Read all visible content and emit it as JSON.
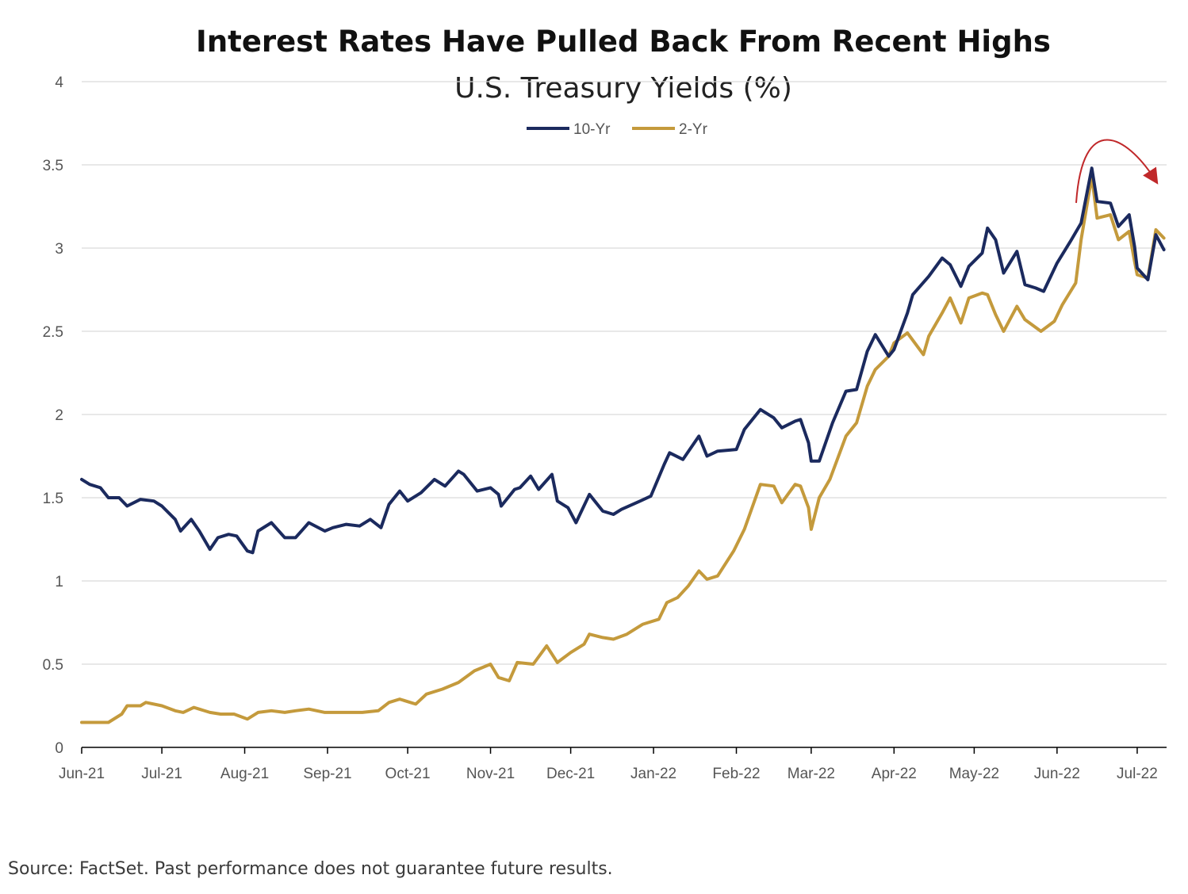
{
  "source_note": "Source: FactSet. Past performance does not guarantee future results.",
  "chart_data": {
    "type": "line",
    "title": "Interest Rates Have Pulled Back From Recent Highs",
    "subtitle": "U.S. Treasury Yields (%)",
    "xlabel": "",
    "ylabel": "",
    "ylim": [
      0,
      4
    ],
    "yticks": [
      "0",
      "0.5",
      "1",
      "1.5",
      "2",
      "2.5",
      "3",
      "3.5",
      "4"
    ],
    "xlim": [
      "2021-06-01",
      "2022-07-12"
    ],
    "xticks": [
      {
        "date": "2021-06-01",
        "label": "Jun-21"
      },
      {
        "date": "2021-07-01",
        "label": "Jul-21"
      },
      {
        "date": "2021-08-01",
        "label": "Aug-21"
      },
      {
        "date": "2021-09-01",
        "label": "Sep-21"
      },
      {
        "date": "2021-10-01",
        "label": "Oct-21"
      },
      {
        "date": "2021-11-01",
        "label": "Nov-21"
      },
      {
        "date": "2021-12-01",
        "label": "Dec-21"
      },
      {
        "date": "2022-01-01",
        "label": "Jan-22"
      },
      {
        "date": "2022-02-01",
        "label": "Feb-22"
      },
      {
        "date": "2022-03-01",
        "label": "Mar-22"
      },
      {
        "date": "2022-04-01",
        "label": "Apr-22"
      },
      {
        "date": "2022-05-01",
        "label": "May-22"
      },
      {
        "date": "2022-06-01",
        "label": "Jun-22"
      },
      {
        "date": "2022-07-01",
        "label": "Jul-22"
      }
    ],
    "grid": true,
    "legend_position": "top-center",
    "annotation": "red curved arrow over the June 2022 peak pointing down to the right",
    "series": [
      {
        "name": "10-Yr",
        "color": "#1b2a5e",
        "points": [
          [
            "2021-06-01",
            1.61
          ],
          [
            "2021-06-04",
            1.58
          ],
          [
            "2021-06-08",
            1.56
          ],
          [
            "2021-06-11",
            1.5
          ],
          [
            "2021-06-15",
            1.5
          ],
          [
            "2021-06-18",
            1.45
          ],
          [
            "2021-06-23",
            1.49
          ],
          [
            "2021-06-28",
            1.48
          ],
          [
            "2021-07-01",
            1.45
          ],
          [
            "2021-07-06",
            1.37
          ],
          [
            "2021-07-08",
            1.3
          ],
          [
            "2021-07-12",
            1.37
          ],
          [
            "2021-07-15",
            1.3
          ],
          [
            "2021-07-19",
            1.19
          ],
          [
            "2021-07-22",
            1.26
          ],
          [
            "2021-07-26",
            1.28
          ],
          [
            "2021-07-29",
            1.27
          ],
          [
            "2021-08-02",
            1.18
          ],
          [
            "2021-08-04",
            1.17
          ],
          [
            "2021-08-06",
            1.3
          ],
          [
            "2021-08-11",
            1.35
          ],
          [
            "2021-08-16",
            1.26
          ],
          [
            "2021-08-20",
            1.26
          ],
          [
            "2021-08-25",
            1.35
          ],
          [
            "2021-08-31",
            1.3
          ],
          [
            "2021-09-03",
            1.32
          ],
          [
            "2021-09-08",
            1.34
          ],
          [
            "2021-09-13",
            1.33
          ],
          [
            "2021-09-17",
            1.37
          ],
          [
            "2021-09-21",
            1.32
          ],
          [
            "2021-09-24",
            1.46
          ],
          [
            "2021-09-28",
            1.54
          ],
          [
            "2021-10-01",
            1.48
          ],
          [
            "2021-10-06",
            1.53
          ],
          [
            "2021-10-11",
            1.61
          ],
          [
            "2021-10-15",
            1.57
          ],
          [
            "2021-10-20",
            1.66
          ],
          [
            "2021-10-22",
            1.64
          ],
          [
            "2021-10-27",
            1.54
          ],
          [
            "2021-11-01",
            1.56
          ],
          [
            "2021-11-04",
            1.52
          ],
          [
            "2021-11-05",
            1.45
          ],
          [
            "2021-11-10",
            1.55
          ],
          [
            "2021-11-12",
            1.56
          ],
          [
            "2021-11-16",
            1.63
          ],
          [
            "2021-11-19",
            1.55
          ],
          [
            "2021-11-24",
            1.64
          ],
          [
            "2021-11-26",
            1.48
          ],
          [
            "2021-11-30",
            1.44
          ],
          [
            "2021-12-03",
            1.35
          ],
          [
            "2021-12-08",
            1.52
          ],
          [
            "2021-12-13",
            1.42
          ],
          [
            "2021-12-17",
            1.4
          ],
          [
            "2021-12-20",
            1.43
          ],
          [
            "2021-12-27",
            1.48
          ],
          [
            "2021-12-31",
            1.51
          ],
          [
            "2022-01-05",
            1.7
          ],
          [
            "2022-01-07",
            1.77
          ],
          [
            "2022-01-12",
            1.73
          ],
          [
            "2022-01-18",
            1.87
          ],
          [
            "2022-01-21",
            1.75
          ],
          [
            "2022-01-25",
            1.78
          ],
          [
            "2022-02-01",
            1.79
          ],
          [
            "2022-02-04",
            1.91
          ],
          [
            "2022-02-10",
            2.03
          ],
          [
            "2022-02-15",
            1.98
          ],
          [
            "2022-02-18",
            1.92
          ],
          [
            "2022-02-23",
            1.96
          ],
          [
            "2022-02-25",
            1.97
          ],
          [
            "2022-02-28",
            1.83
          ],
          [
            "2022-03-01",
            1.72
          ],
          [
            "2022-03-04",
            1.72
          ],
          [
            "2022-03-09",
            1.95
          ],
          [
            "2022-03-14",
            2.14
          ],
          [
            "2022-03-18",
            2.15
          ],
          [
            "2022-03-22",
            2.38
          ],
          [
            "2022-03-25",
            2.48
          ],
          [
            "2022-03-30",
            2.35
          ],
          [
            "2022-04-01",
            2.39
          ],
          [
            "2022-04-06",
            2.61
          ],
          [
            "2022-04-08",
            2.72
          ],
          [
            "2022-04-14",
            2.83
          ],
          [
            "2022-04-19",
            2.94
          ],
          [
            "2022-04-22",
            2.9
          ],
          [
            "2022-04-26",
            2.77
          ],
          [
            "2022-04-29",
            2.89
          ],
          [
            "2022-05-04",
            2.97
          ],
          [
            "2022-05-06",
            3.12
          ],
          [
            "2022-05-09",
            3.05
          ],
          [
            "2022-05-12",
            2.85
          ],
          [
            "2022-05-17",
            2.98
          ],
          [
            "2022-05-20",
            2.78
          ],
          [
            "2022-05-24",
            2.76
          ],
          [
            "2022-05-27",
            2.74
          ],
          [
            "2022-06-01",
            2.91
          ],
          [
            "2022-06-06",
            3.04
          ],
          [
            "2022-06-10",
            3.15
          ],
          [
            "2022-06-14",
            3.48
          ],
          [
            "2022-06-16",
            3.28
          ],
          [
            "2022-06-21",
            3.27
          ],
          [
            "2022-06-24",
            3.13
          ],
          [
            "2022-06-28",
            3.2
          ],
          [
            "2022-06-30",
            3.01
          ],
          [
            "2022-07-01",
            2.88
          ],
          [
            "2022-07-05",
            2.81
          ],
          [
            "2022-07-08",
            3.08
          ],
          [
            "2022-07-11",
            2.99
          ]
        ]
      },
      {
        "name": "2-Yr",
        "color": "#c49a3c",
        "points": [
          [
            "2021-06-01",
            0.15
          ],
          [
            "2021-06-07",
            0.15
          ],
          [
            "2021-06-11",
            0.15
          ],
          [
            "2021-06-16",
            0.2
          ],
          [
            "2021-06-18",
            0.25
          ],
          [
            "2021-06-23",
            0.25
          ],
          [
            "2021-06-25",
            0.27
          ],
          [
            "2021-07-01",
            0.25
          ],
          [
            "2021-07-06",
            0.22
          ],
          [
            "2021-07-09",
            0.21
          ],
          [
            "2021-07-13",
            0.24
          ],
          [
            "2021-07-19",
            0.21
          ],
          [
            "2021-07-23",
            0.2
          ],
          [
            "2021-07-28",
            0.2
          ],
          [
            "2021-08-02",
            0.17
          ],
          [
            "2021-08-06",
            0.21
          ],
          [
            "2021-08-11",
            0.22
          ],
          [
            "2021-08-16",
            0.21
          ],
          [
            "2021-08-20",
            0.22
          ],
          [
            "2021-08-25",
            0.23
          ],
          [
            "2021-08-31",
            0.21
          ],
          [
            "2021-09-07",
            0.21
          ],
          [
            "2021-09-14",
            0.21
          ],
          [
            "2021-09-20",
            0.22
          ],
          [
            "2021-09-24",
            0.27
          ],
          [
            "2021-09-28",
            0.29
          ],
          [
            "2021-10-04",
            0.26
          ],
          [
            "2021-10-08",
            0.32
          ],
          [
            "2021-10-14",
            0.35
          ],
          [
            "2021-10-20",
            0.39
          ],
          [
            "2021-10-26",
            0.46
          ],
          [
            "2021-11-01",
            0.5
          ],
          [
            "2021-11-04",
            0.42
          ],
          [
            "2021-11-08",
            0.4
          ],
          [
            "2021-11-11",
            0.51
          ],
          [
            "2021-11-17",
            0.5
          ],
          [
            "2021-11-22",
            0.61
          ],
          [
            "2021-11-26",
            0.51
          ],
          [
            "2021-12-01",
            0.57
          ],
          [
            "2021-12-06",
            0.62
          ],
          [
            "2021-12-08",
            0.68
          ],
          [
            "2021-12-13",
            0.66
          ],
          [
            "2021-12-17",
            0.65
          ],
          [
            "2021-12-22",
            0.68
          ],
          [
            "2021-12-28",
            0.74
          ],
          [
            "2022-01-03",
            0.77
          ],
          [
            "2022-01-06",
            0.87
          ],
          [
            "2022-01-10",
            0.9
          ],
          [
            "2022-01-14",
            0.97
          ],
          [
            "2022-01-18",
            1.06
          ],
          [
            "2022-01-21",
            1.01
          ],
          [
            "2022-01-25",
            1.03
          ],
          [
            "2022-01-31",
            1.18
          ],
          [
            "2022-02-04",
            1.31
          ],
          [
            "2022-02-10",
            1.58
          ],
          [
            "2022-02-15",
            1.57
          ],
          [
            "2022-02-18",
            1.47
          ],
          [
            "2022-02-23",
            1.58
          ],
          [
            "2022-02-25",
            1.57
          ],
          [
            "2022-02-28",
            1.44
          ],
          [
            "2022-03-01",
            1.31
          ],
          [
            "2022-03-04",
            1.5
          ],
          [
            "2022-03-08",
            1.61
          ],
          [
            "2022-03-14",
            1.87
          ],
          [
            "2022-03-18",
            1.95
          ],
          [
            "2022-03-22",
            2.17
          ],
          [
            "2022-03-25",
            2.27
          ],
          [
            "2022-03-30",
            2.35
          ],
          [
            "2022-04-01",
            2.43
          ],
          [
            "2022-04-06",
            2.49
          ],
          [
            "2022-04-12",
            2.36
          ],
          [
            "2022-04-14",
            2.47
          ],
          [
            "2022-04-19",
            2.61
          ],
          [
            "2022-04-22",
            2.7
          ],
          [
            "2022-04-26",
            2.55
          ],
          [
            "2022-04-29",
            2.7
          ],
          [
            "2022-05-04",
            2.73
          ],
          [
            "2022-05-06",
            2.72
          ],
          [
            "2022-05-09",
            2.6
          ],
          [
            "2022-05-12",
            2.5
          ],
          [
            "2022-05-17",
            2.65
          ],
          [
            "2022-05-20",
            2.57
          ],
          [
            "2022-05-26",
            2.5
          ],
          [
            "2022-05-31",
            2.56
          ],
          [
            "2022-06-03",
            2.66
          ],
          [
            "2022-06-08",
            2.79
          ],
          [
            "2022-06-10",
            3.05
          ],
          [
            "2022-06-14",
            3.43
          ],
          [
            "2022-06-16",
            3.18
          ],
          [
            "2022-06-21",
            3.2
          ],
          [
            "2022-06-24",
            3.05
          ],
          [
            "2022-06-28",
            3.1
          ],
          [
            "2022-06-30",
            2.92
          ],
          [
            "2022-07-01",
            2.84
          ],
          [
            "2022-07-05",
            2.82
          ],
          [
            "2022-07-08",
            3.11
          ],
          [
            "2022-07-11",
            3.06
          ]
        ]
      }
    ]
  }
}
